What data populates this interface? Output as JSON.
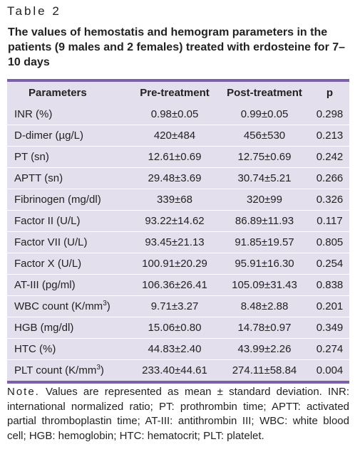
{
  "table_label": "Table 2",
  "title": "The values of hemostatis and hemogram parameters in the patients (9 males and 2 females) treated with erdosteine for 7–10 days",
  "columns": [
    "Parameters",
    "Pre-treatment",
    "Post-treatment",
    "p"
  ],
  "rows": [
    {
      "param": "INR (%)",
      "pre": "0.98±0.05",
      "post": "0.99±0.05",
      "p": "0.298"
    },
    {
      "param": "D-dimer (µg/L)",
      "pre": "420±484",
      "post": "456±530",
      "p": "0.213"
    },
    {
      "param": "PT (sn)",
      "pre": "12.61±0.69",
      "post": "12.75±0.69",
      "p": "0.242"
    },
    {
      "param": "APTT (sn)",
      "pre": "29.48±3.69",
      "post": "30.74±5.21",
      "p": "0.266"
    },
    {
      "param": "Fibrinogen (mg/dl)",
      "pre": "339±68",
      "post": "320±99",
      "p": "0.326"
    },
    {
      "param": "Factor II (U/L)",
      "pre": "93.22±14.62",
      "post": "86.89±11.93",
      "p": "0.117"
    },
    {
      "param": "Factor VII (U/L)",
      "pre": "93.45±21.13",
      "post": "91.85±19.57",
      "p": "0.805"
    },
    {
      "param": "Factor X (U/L)",
      "pre": "100.91±20.29",
      "post": "95.91±16.30",
      "p": "0.254"
    },
    {
      "param": "AT-III (pg/ml)",
      "pre": "106.36±26.41",
      "post": "105.09±31.43",
      "p": "0.838"
    },
    {
      "param": "WBC count (K/mm",
      "param_sup": "3",
      "param_end": ")",
      "pre": "9.71±3.27",
      "post": "8.48±2.88",
      "p": "0.201"
    },
    {
      "param": "HGB (mg/dl)",
      "pre": "15.06±0.80",
      "post": "14.78±0.97",
      "p": "0.349"
    },
    {
      "param": "HTC (%)",
      "pre": "44.83±2.40",
      "post": "43.99±2.26",
      "p": "0.274"
    },
    {
      "param": "PLT count (K/mm",
      "param_sup": "3",
      "param_end": ")",
      "pre": "233.40±44.61",
      "post": "274.11±58.84",
      "p": "0.004"
    }
  ],
  "note": {
    "label": "Note.",
    "text": " Values are represented as mean ± standard deviation. INR: international normalized ratio; PT: prothrombin time; APTT: activated partial thromboplastin time; AT-III: antithrombin III; WBC: white blood cell; HGB: hemoglobin; HTC: hematocrit; PLT: platelet."
  },
  "colors": {
    "table_background": "#e3dfec",
    "table_rule": "#7b5fa8",
    "text": "#222222"
  }
}
